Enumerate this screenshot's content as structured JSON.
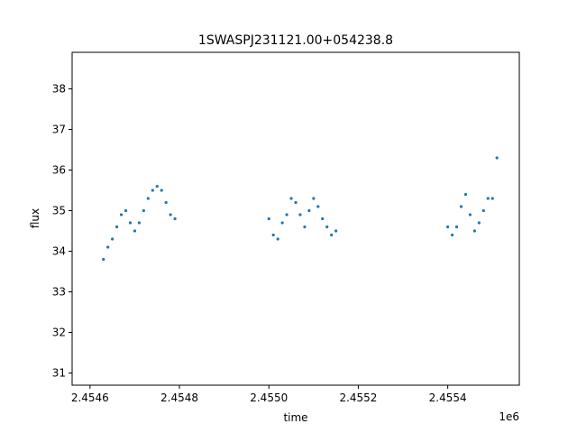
{
  "chart_data": {
    "type": "scatter",
    "title": "1SWASPJ231121.00+054238.8",
    "xlabel": "time",
    "ylabel": "flux",
    "x_offset_label": "1e6",
    "xlim": [
      2454560,
      2455560
    ],
    "ylim": [
      30.7,
      38.9
    ],
    "x_ticks": [
      2454600,
      2454800,
      2455000,
      2455200,
      2455400
    ],
    "x_tick_labels": [
      "2.4546",
      "2.4548",
      "2.4550",
      "2.4552",
      "2.4554"
    ],
    "y_ticks": [
      31,
      32,
      33,
      34,
      35,
      36,
      37,
      38
    ],
    "y_tick_labels": [
      "31",
      "32",
      "33",
      "34",
      "35",
      "36",
      "37",
      "38"
    ],
    "grid": false,
    "marker_color": "#1f77b4",
    "series": [
      {
        "x": [
          2454630,
          2454640,
          2454650,
          2454660,
          2454670,
          2454680,
          2454690,
          2454700,
          2454710,
          2454720,
          2454730,
          2454740,
          2454750,
          2454760,
          2454770,
          2454780,
          2454790,
          2455000,
          2455010,
          2455020,
          2455030,
          2455040,
          2455050,
          2455060,
          2455070,
          2455080,
          2455090,
          2455100,
          2455110,
          2455120,
          2455130,
          2455140,
          2455150,
          2455400,
          2455410,
          2455420,
          2455430,
          2455440,
          2455450,
          2455460,
          2455470,
          2455480,
          2455490,
          2455500,
          2455510
        ],
        "y": [
          33.8,
          34.1,
          34.3,
          34.6,
          34.9,
          35.0,
          34.7,
          34.5,
          34.7,
          35.0,
          35.3,
          35.5,
          35.6,
          35.5,
          35.2,
          34.9,
          34.8,
          34.8,
          34.4,
          34.3,
          34.7,
          34.9,
          35.3,
          35.2,
          34.9,
          34.6,
          35.0,
          35.3,
          35.1,
          34.8,
          34.6,
          34.4,
          34.5,
          34.6,
          34.4,
          34.6,
          35.1,
          35.4,
          34.9,
          34.5,
          34.7,
          35.0,
          35.3,
          35.3,
          36.3
        ]
      }
    ]
  }
}
